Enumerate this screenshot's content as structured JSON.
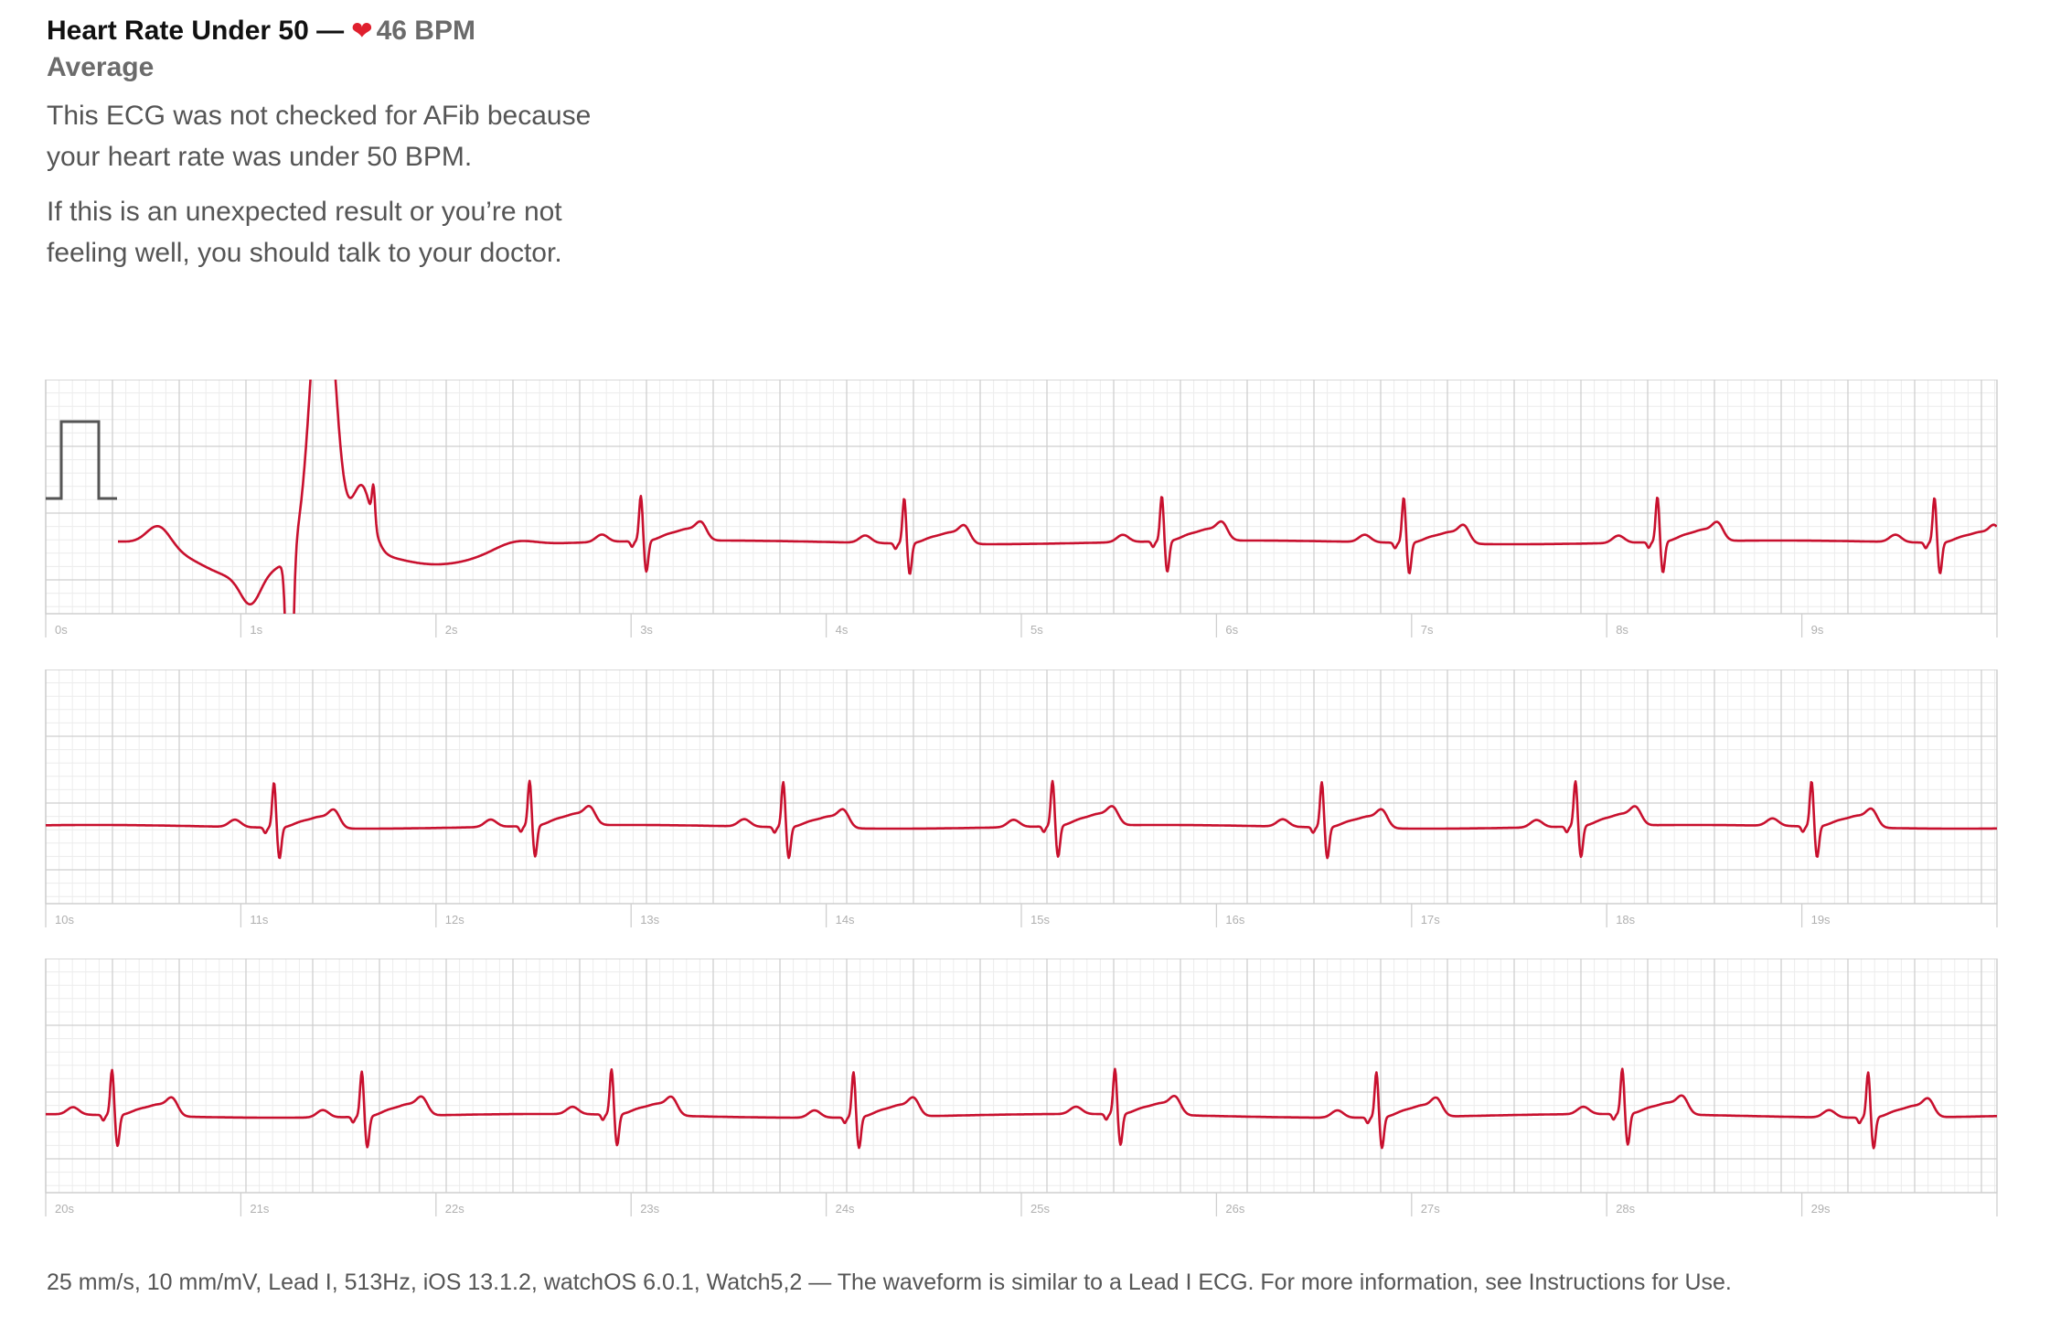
{
  "header": {
    "title": "Heart Rate Under 50 —",
    "heart_glyph": "❤",
    "bpm": "46 BPM",
    "subtitle": "Average",
    "description_1": "This ECG was not checked for AFib because your heart rate was under 50 BPM.",
    "description_2": "If this is an unexpected result or you’re not feeling well, you should talk to your doctor."
  },
  "footer": {
    "text": "25 mm/s, 10 mm/mV, Lead I, 513Hz, iOS 13.1.2, watchOS 6.0.1, Watch5,2 — The waveform is similar to a Lead I ECG. For more information, see Instructions for Use."
  },
  "colors": {
    "trace": "#c8102e",
    "grid_major": "#cfcfcf",
    "grid_minor": "#ececec",
    "calibration": "#555555",
    "heart": "#e0202e"
  },
  "chart_data": {
    "type": "line",
    "paper_speed": "25 mm/s",
    "gain": "10 mm/mV",
    "lead": "Lead I",
    "sample_rate": "513Hz",
    "seconds_per_strip": 10,
    "average_bpm": 46,
    "strips": [
      {
        "tick_labels": [
          "0s",
          "1s",
          "2s",
          "3s",
          "4s",
          "5s",
          "6s",
          "7s",
          "8s",
          "9s"
        ],
        "start_s": 0,
        "beats_s": [
          3.05,
          4.4,
          5.72,
          6.96,
          8.26,
          9.68
        ],
        "artifact": true
      },
      {
        "tick_labels": [
          "10s",
          "11s",
          "12s",
          "13s",
          "14s",
          "15s",
          "16s",
          "17s",
          "18s",
          "19s"
        ],
        "start_s": 10,
        "beats_s": [
          11.17,
          12.48,
          13.78,
          15.16,
          16.54,
          17.84,
          19.05
        ]
      },
      {
        "tick_labels": [
          "20s",
          "21s",
          "22s",
          "23s",
          "24s",
          "25s",
          "26s",
          "27s",
          "28s",
          "29s"
        ],
        "start_s": 20,
        "beats_s": [
          20.34,
          21.62,
          22.9,
          24.14,
          25.48,
          26.82,
          28.08,
          29.34
        ]
      }
    ]
  }
}
